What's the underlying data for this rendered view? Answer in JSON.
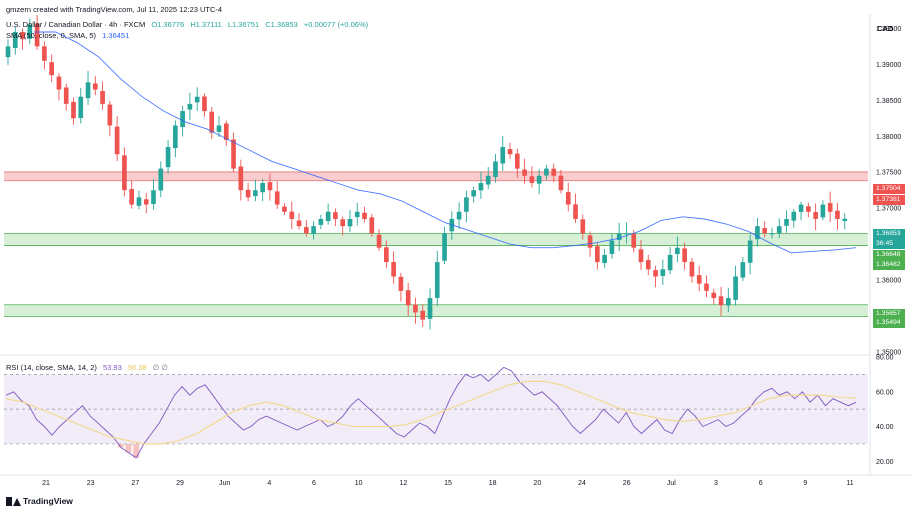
{
  "header": {
    "attribution": "gmzern created with TradingView.com, Jul 11, 2025 12:23 UTC-4",
    "symbol_line": "U.S. Dollar / Canadian Dollar · 4h · FXCM",
    "ohlc": {
      "open": "O1.36776",
      "high": "H1.37111",
      "low": "L1.36751",
      "close": "C1.36853",
      "change": "+0.00077 (+0.06%)"
    },
    "sma_label": "SMA (50, close, 0, SMA, 5)",
    "sma_value": "1.36451"
  },
  "currency": "CAD",
  "rsi_header": {
    "label": "RSI (14, close, SMA, 14, 2)",
    "value": "53.93",
    "ma_value": "56.38",
    "extra": "∅ ∅"
  },
  "branding": "TradingView",
  "colors": {
    "up": "#26a69a",
    "down": "#ef5350",
    "sma": "#2962ff",
    "resistance_zone": "#f8c4c4",
    "support_zone": "#cfeccf",
    "rsi_line": "#7e57c2",
    "rsi_ma": "#f2d88a",
    "rsi_band": "#ede7f6"
  },
  "price_tags": [
    {
      "text": "1.37504",
      "bg": "#ef5350",
      "fg": "#ffffff"
    },
    {
      "text": "1.37381",
      "bg": "#ef5350",
      "fg": "#ffffff"
    },
    {
      "text": "1.36853",
      "bg": "#26a69a",
      "fg": "#ffffff"
    },
    {
      "text": "36:45",
      "bg": "#26a69a",
      "fg": "#ffffff"
    },
    {
      "text": "1.36648",
      "bg": "#4caf50",
      "fg": "#ffffff"
    },
    {
      "text": "1.36482",
      "bg": "#4caf50",
      "fg": "#ffffff"
    },
    {
      "text": "1.35657",
      "bg": "#4caf50",
      "fg": "#ffffff"
    },
    {
      "text": "1.35494",
      "bg": "#4caf50",
      "fg": "#ffffff"
    }
  ],
  "chart_data": {
    "type": "candlestick",
    "price_axis": {
      "ylim": [
        1.35,
        1.397
      ],
      "ticks": [
        1.395,
        1.39,
        1.385,
        1.38,
        1.375,
        1.37,
        1.365,
        1.36,
        1.355,
        1.35
      ],
      "tick_labels": [
        "1.39500",
        "1.39000",
        "1.38500",
        "1.38000",
        "1.37500",
        "1.37000",
        "1.36500",
        "1.36000",
        "1.35500",
        "1.35000"
      ]
    },
    "x_tick_labels": [
      "21",
      "23",
      "27",
      "29",
      "Jun",
      "4",
      "6",
      "10",
      "12",
      "15",
      "18",
      "20",
      "24",
      "26",
      "Jul",
      "3",
      "6",
      "9",
      "11"
    ],
    "zones": [
      {
        "name": "resistance",
        "from": 1.37381,
        "to": 1.37504
      },
      {
        "name": "support-upper",
        "from": 1.36482,
        "to": 1.36648
      },
      {
        "name": "support-lower",
        "from": 1.35494,
        "to": 1.35657
      }
    ],
    "series": [
      {
        "name": "USDCAD",
        "close_path": [
          1.3925,
          1.3945,
          1.3935,
          1.3955,
          1.3925,
          1.3905,
          1.3885,
          1.3865,
          1.3845,
          1.3825,
          1.3855,
          1.3875,
          1.3865,
          1.3845,
          1.3815,
          1.3775,
          1.3725,
          1.3705,
          1.3715,
          1.3705,
          1.3725,
          1.3755,
          1.3785,
          1.3815,
          1.3835,
          1.3845,
          1.3855,
          1.3835,
          1.3805,
          1.3815,
          1.3795,
          1.3755,
          1.3725,
          1.3715,
          1.3725,
          1.3735,
          1.3725,
          1.3705,
          1.3695,
          1.3685,
          1.3675,
          1.3665,
          1.3675,
          1.3685,
          1.3695,
          1.3685,
          1.3675,
          1.3685,
          1.3695,
          1.3685,
          1.3665,
          1.3645,
          1.3625,
          1.3605,
          1.3585,
          1.3565,
          1.3555,
          1.3545,
          1.3575,
          1.3625,
          1.3665,
          1.3685,
          1.3695,
          1.3715,
          1.3725,
          1.3735,
          1.3745,
          1.3765,
          1.3785,
          1.3775,
          1.3755,
          1.3745,
          1.3735,
          1.3745,
          1.3755,
          1.3745,
          1.3725,
          1.3705,
          1.3685,
          1.3665,
          1.3645,
          1.3625,
          1.3635,
          1.3655,
          1.3665,
          1.3665,
          1.3645,
          1.3625,
          1.3615,
          1.3605,
          1.3615,
          1.3635,
          1.3645,
          1.3625,
          1.3605,
          1.3595,
          1.3585,
          1.3575,
          1.3565,
          1.3575,
          1.3605,
          1.3625,
          1.3655,
          1.3675,
          1.3665,
          1.3665,
          1.3675,
          1.3685,
          1.3695,
          1.3705,
          1.3695,
          1.3685,
          1.3705,
          1.3695,
          1.3685,
          1.36853
        ]
      },
      {
        "name": "SMA 50",
        "values": [
          1.3945,
          1.3945,
          1.393,
          1.391,
          1.388,
          1.3855,
          1.3835,
          1.382,
          1.381,
          1.3795,
          1.378,
          1.3765,
          1.3755,
          1.3745,
          1.3735,
          1.3725,
          1.372,
          1.371,
          1.3695,
          1.368,
          1.367,
          1.366,
          1.365,
          1.3645,
          1.3645,
          1.3648,
          1.3652,
          1.3658,
          1.3668,
          1.3683,
          1.3688,
          1.3685,
          1.3678,
          1.3668,
          1.3652,
          1.3638,
          1.364,
          1.3642,
          1.3645
        ]
      }
    ],
    "rsi": {
      "ylim": [
        15,
        80
      ],
      "levels": [
        70,
        50,
        30
      ],
      "tick_labels": [
        "80.00",
        "60.00",
        "40.00",
        "20.00"
      ],
      "values": [
        58,
        60,
        55,
        52,
        44,
        40,
        35,
        40,
        44,
        48,
        52,
        46,
        42,
        38,
        34,
        28,
        25,
        22,
        30,
        36,
        42,
        50,
        58,
        63,
        58,
        62,
        64,
        58,
        52,
        46,
        42,
        38,
        40,
        44,
        46,
        44,
        42,
        40,
        38,
        40,
        42,
        44,
        40,
        42,
        46,
        52,
        56,
        52,
        48,
        44,
        40,
        36,
        34,
        38,
        42,
        40,
        36,
        46,
        56,
        64,
        70,
        68,
        70,
        66,
        70,
        74,
        72,
        66,
        62,
        58,
        60,
        56,
        52,
        46,
        40,
        36,
        40,
        44,
        50,
        46,
        42,
        48,
        40,
        36,
        40,
        44,
        38,
        36,
        44,
        50,
        46,
        40,
        42,
        44,
        40,
        42,
        46,
        50,
        56,
        60,
        62,
        58,
        60,
        56,
        60,
        54,
        58,
        52,
        56,
        54,
        52,
        53.93
      ],
      "ma_values": [
        56,
        54,
        50,
        46,
        42,
        38,
        34,
        32,
        30,
        30,
        32,
        36,
        42,
        48,
        52,
        54,
        52,
        48,
        44,
        42,
        40,
        40,
        40,
        41,
        44,
        48,
        52,
        56,
        60,
        64,
        66,
        66,
        64,
        60,
        56,
        52,
        48,
        46,
        44,
        43,
        44,
        46,
        48,
        52,
        56,
        58,
        58,
        58,
        57,
        56.38
      ]
    }
  }
}
